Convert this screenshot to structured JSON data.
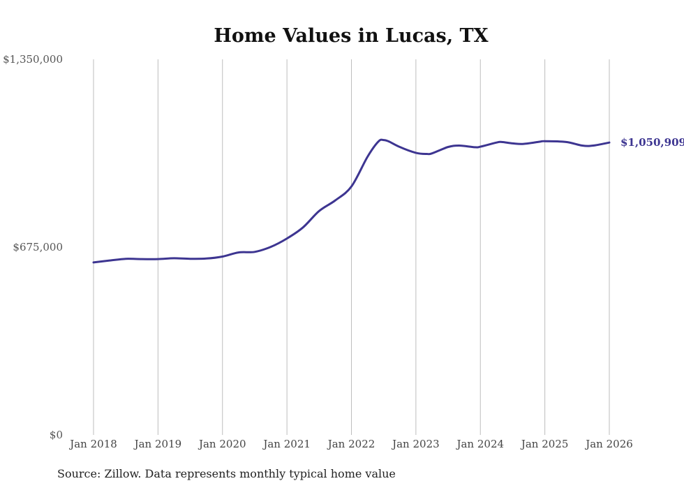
{
  "chart_data": {
    "type": "line",
    "title": "Home Values in Lucas, TX",
    "xlabel": "",
    "ylabel": "",
    "source": "Source: Zillow. Data represents monthly typical home value",
    "x_ticks": [
      "Jan 2018",
      "Jan 2019",
      "Jan 2020",
      "Jan 2021",
      "Jan 2022",
      "Jan 2023",
      "Jan 2024",
      "Jan 2025",
      "Jan 2026"
    ],
    "y_ticks": [
      {
        "value": 0,
        "label": "$0"
      },
      {
        "value": 675000,
        "label": "$675,000"
      },
      {
        "value": 1350000,
        "label": "$1,350,000"
      }
    ],
    "ylim": [
      0,
      1350000
    ],
    "xlim": [
      2018.0,
      2026.0
    ],
    "grid": "vertical",
    "end_label": "$1,050,909",
    "series": [
      {
        "name": "Typical home value",
        "color": "#3d3591",
        "x": [
          2018.0,
          2018.25,
          2018.5,
          2018.75,
          2019.0,
          2019.25,
          2019.5,
          2019.75,
          2020.0,
          2020.25,
          2020.5,
          2020.75,
          2021.0,
          2021.25,
          2021.5,
          2021.75,
          2022.0,
          2022.25,
          2022.42,
          2022.5,
          2022.58,
          2022.75,
          2023.0,
          2023.17,
          2023.25,
          2023.5,
          2023.67,
          2023.92,
          2024.0,
          2024.25,
          2024.33,
          2024.5,
          2024.67,
          2024.92,
          2025.0,
          2025.33,
          2025.58,
          2025.75,
          2026.0
        ],
        "values": [
          620000,
          627000,
          633000,
          632000,
          632000,
          635000,
          633000,
          634000,
          641000,
          656000,
          658000,
          676000,
          706000,
          746000,
          805000,
          843000,
          893000,
          1000000,
          1055000,
          1060000,
          1055000,
          1035000,
          1014000,
          1010000,
          1012000,
          1035000,
          1040000,
          1034000,
          1036000,
          1051000,
          1053000,
          1048000,
          1046000,
          1054000,
          1056000,
          1053000,
          1040000,
          1040000,
          1050909
        ]
      }
    ]
  }
}
